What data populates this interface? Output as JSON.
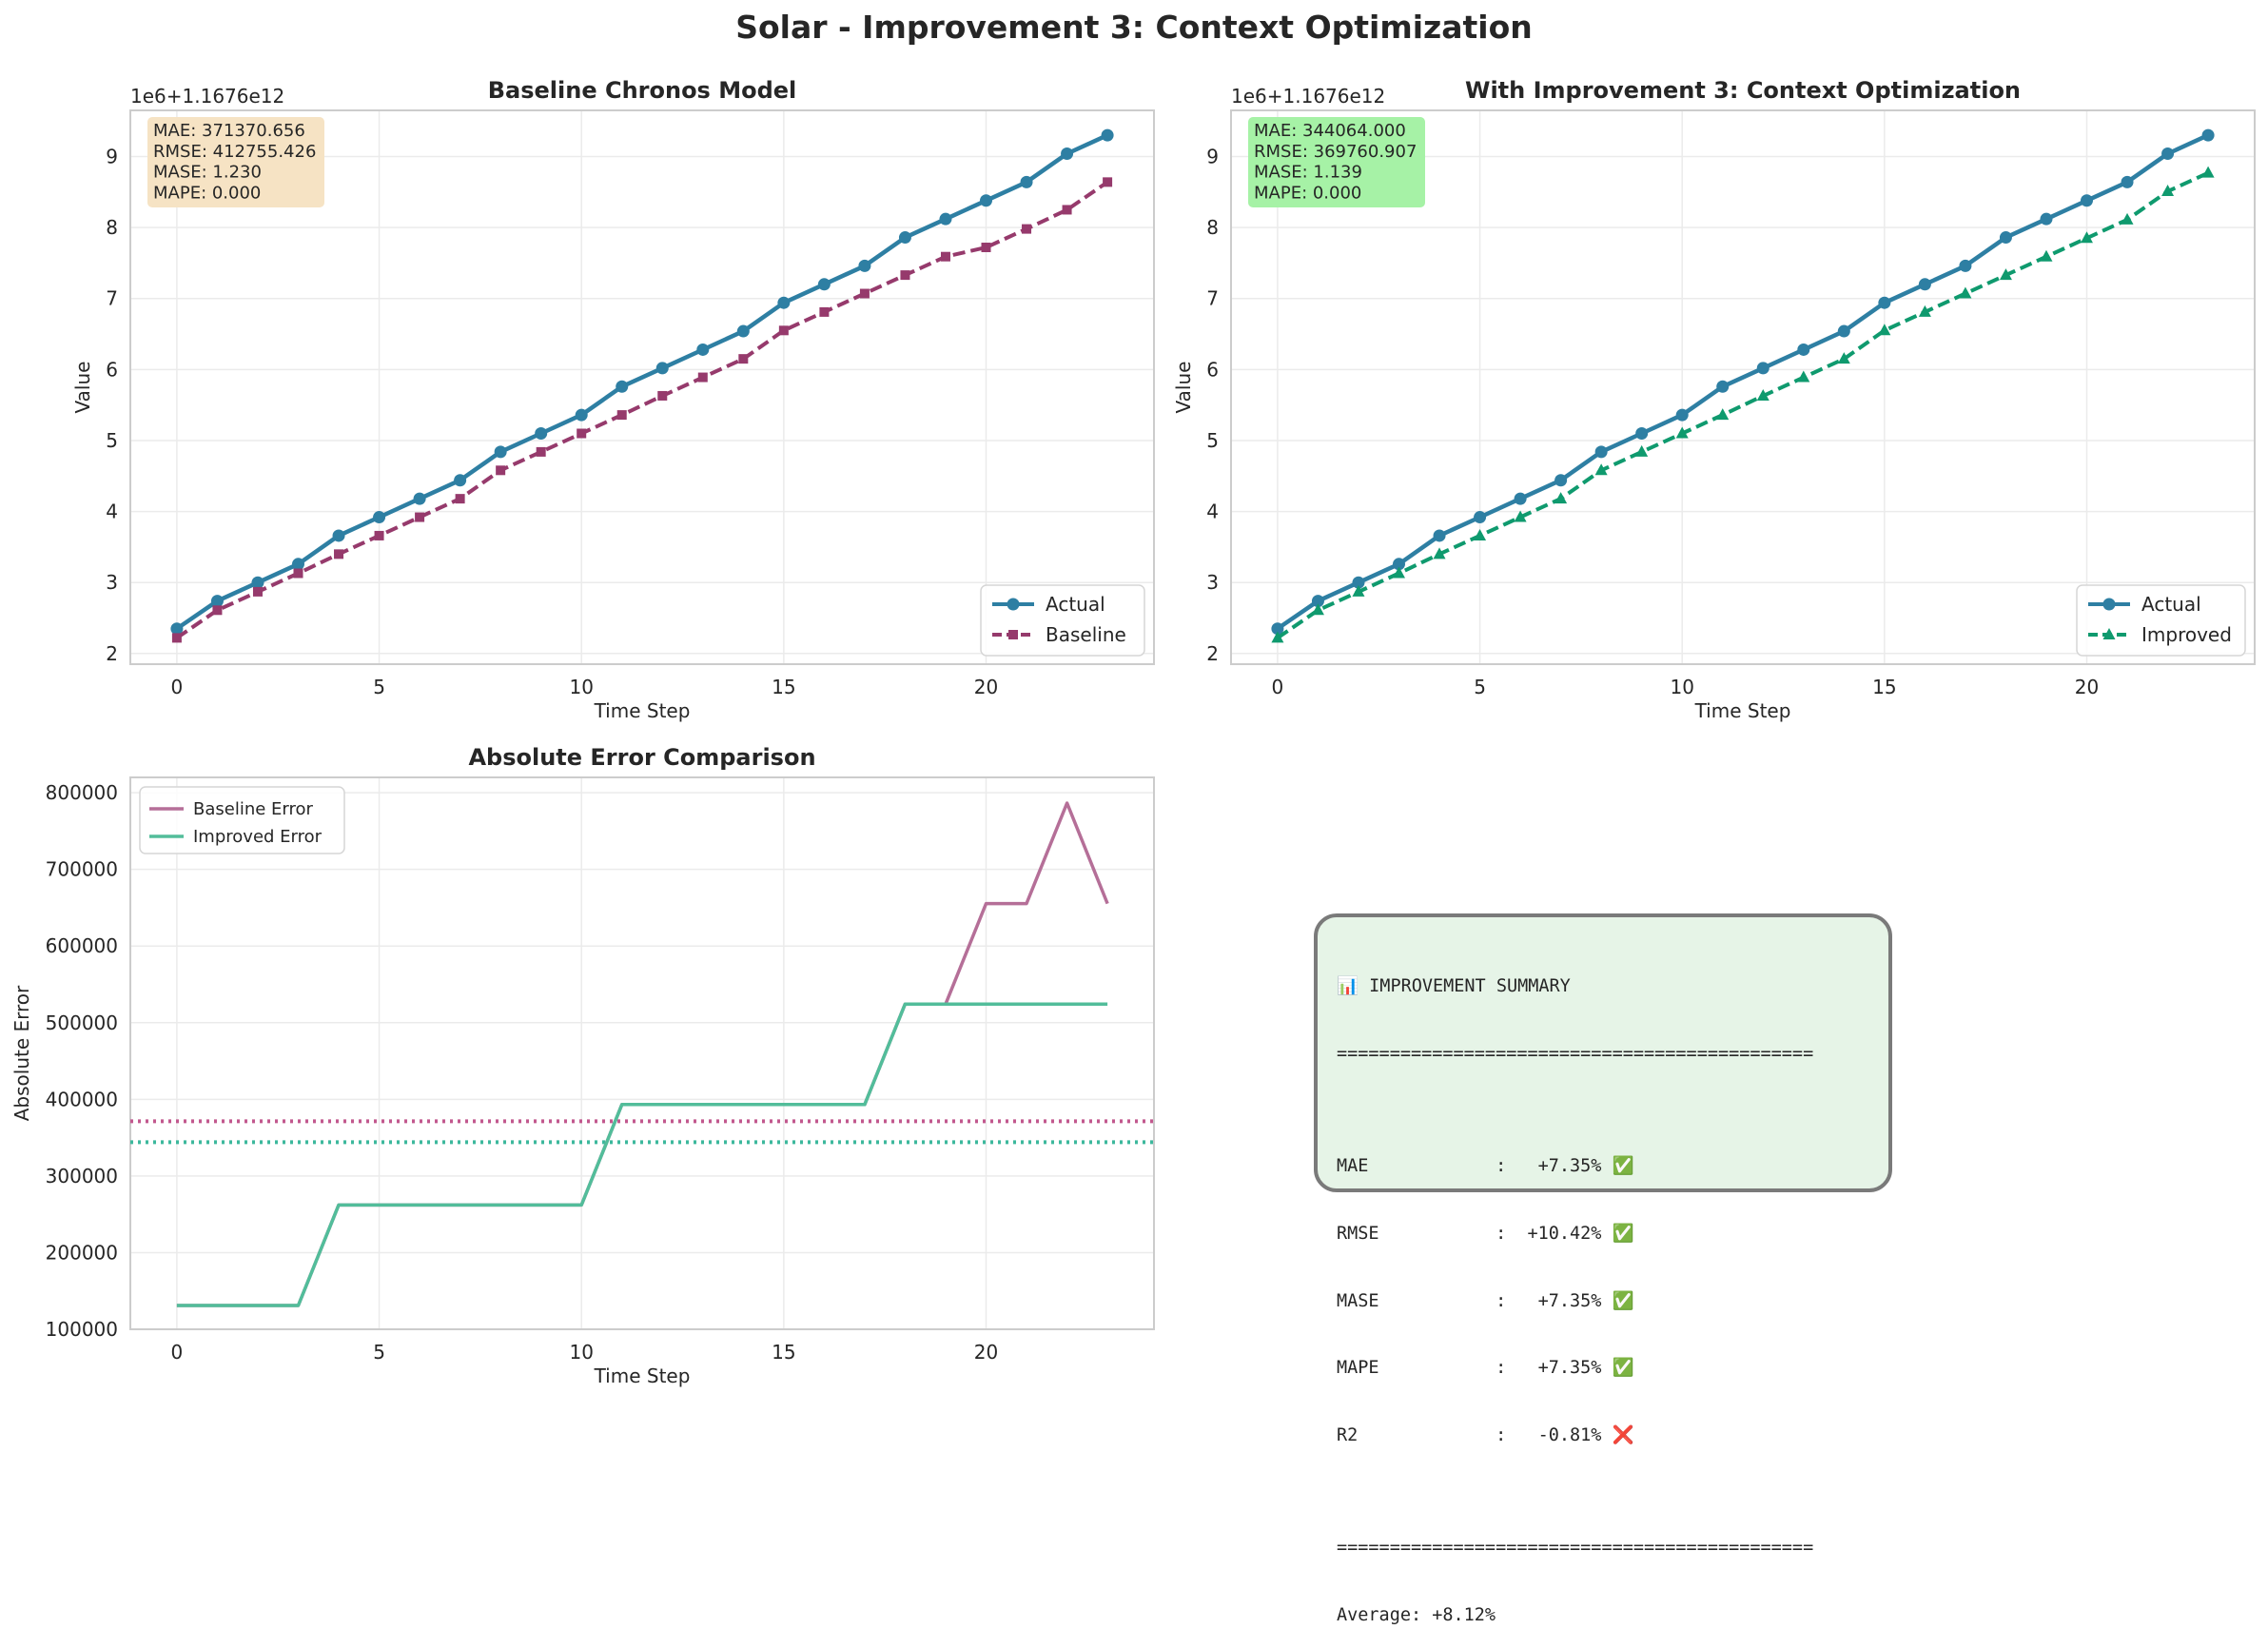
{
  "figure": {
    "title": "Solar - Improvement 3: Context Optimization"
  },
  "colors": {
    "actual": "#2e7fa3",
    "baseline": "#963a6c",
    "improved": "#0f9a6e",
    "baseline_error": "#b56f98",
    "improved_error": "#52bd9a",
    "baseline_mean": "#c2588e",
    "improved_mean": "#3cb89c",
    "metrics_box_baseline": "#f6e3c4",
    "metrics_box_improved": "#a6f2a6",
    "summary_box": "#e6f4e7"
  },
  "chart_data": [
    {
      "type": "line",
      "title": "Baseline Chronos Model",
      "xlabel": "Time Step",
      "ylabel": "Value",
      "offset_label": "1e6+1.1676e12",
      "xlim": [
        -1.15,
        24.15
      ],
      "ylim": [
        1.85,
        9.65
      ],
      "xticks": [
        0,
        5,
        10,
        15,
        20
      ],
      "yticks": [
        2,
        3,
        4,
        5,
        6,
        7,
        8,
        9
      ],
      "grid": true,
      "legend_position": "lower-right",
      "metrics_box": [
        "MAE: 371370.656",
        "RMSE: 412755.426",
        "MASE: 1.230",
        "MAPE: 0.000"
      ],
      "x": [
        0,
        1,
        2,
        3,
        4,
        5,
        6,
        7,
        8,
        9,
        10,
        11,
        12,
        13,
        14,
        15,
        16,
        17,
        18,
        19,
        20,
        21,
        22,
        23
      ],
      "series": [
        {
          "name": "Actual",
          "marker": "circle",
          "dashed": false,
          "values": [
            2.35,
            2.74,
            3.0,
            3.26,
            3.66,
            3.92,
            4.18,
            4.44,
            4.84,
            5.1,
            5.36,
            5.76,
            6.02,
            6.28,
            6.54,
            6.94,
            7.2,
            7.46,
            7.86,
            8.12,
            8.38,
            8.64,
            9.04,
            9.3
          ]
        },
        {
          "name": "Baseline",
          "marker": "square",
          "dashed": true,
          "values": [
            2.22,
            2.61,
            2.87,
            3.13,
            3.4,
            3.66,
            3.92,
            4.18,
            4.58,
            4.84,
            5.1,
            5.36,
            5.63,
            5.89,
            6.15,
            6.55,
            6.81,
            7.07,
            7.33,
            7.59,
            7.72,
            7.98,
            8.25,
            8.64
          ]
        }
      ]
    },
    {
      "type": "line",
      "title": "With Improvement 3: Context Optimization",
      "xlabel": "Time Step",
      "ylabel": "Value",
      "offset_label": "1e6+1.1676e12",
      "xlim": [
        -1.15,
        24.15
      ],
      "ylim": [
        1.85,
        9.65
      ],
      "xticks": [
        0,
        5,
        10,
        15,
        20
      ],
      "yticks": [
        2,
        3,
        4,
        5,
        6,
        7,
        8,
        9
      ],
      "grid": true,
      "legend_position": "lower-right",
      "metrics_box": [
        "MAE: 344064.000",
        "RMSE: 369760.907",
        "MASE: 1.139",
        "MAPE: 0.000"
      ],
      "x": [
        0,
        1,
        2,
        3,
        4,
        5,
        6,
        7,
        8,
        9,
        10,
        11,
        12,
        13,
        14,
        15,
        16,
        17,
        18,
        19,
        20,
        21,
        22,
        23
      ],
      "series": [
        {
          "name": "Actual",
          "marker": "circle",
          "dashed": false,
          "values": [
            2.35,
            2.74,
            3.0,
            3.26,
            3.66,
            3.92,
            4.18,
            4.44,
            4.84,
            5.1,
            5.36,
            5.76,
            6.02,
            6.28,
            6.54,
            6.94,
            7.2,
            7.46,
            7.86,
            8.12,
            8.38,
            8.64,
            9.04,
            9.3
          ]
        },
        {
          "name": "Improved",
          "marker": "triangle",
          "dashed": true,
          "values": [
            2.22,
            2.61,
            2.87,
            3.13,
            3.4,
            3.66,
            3.92,
            4.18,
            4.58,
            4.84,
            5.1,
            5.36,
            5.63,
            5.89,
            6.15,
            6.55,
            6.81,
            7.07,
            7.33,
            7.59,
            7.85,
            8.11,
            8.51,
            8.77
          ]
        }
      ]
    },
    {
      "type": "line",
      "title": "Absolute Error Comparison",
      "xlabel": "Time Step",
      "ylabel": "Absolute Error",
      "xlim": [
        -1.15,
        24.15
      ],
      "ylim": [
        100000,
        820000
      ],
      "xticks": [
        0,
        5,
        10,
        15,
        20
      ],
      "yticks": [
        100000,
        200000,
        300000,
        400000,
        500000,
        600000,
        700000,
        800000
      ],
      "grid": true,
      "legend_position": "upper-left",
      "x": [
        0,
        1,
        2,
        3,
        4,
        5,
        6,
        7,
        8,
        9,
        10,
        11,
        12,
        13,
        14,
        15,
        16,
        17,
        18,
        19,
        20,
        21,
        22,
        23
      ],
      "series": [
        {
          "name": "Baseline Error",
          "values": [
            131072,
            131072,
            131072,
            131072,
            262144,
            262144,
            262144,
            262144,
            262144,
            262144,
            262144,
            393216,
            393216,
            393216,
            393216,
            393216,
            393216,
            393216,
            524288,
            524288,
            655360,
            655360,
            786432,
            655360
          ]
        },
        {
          "name": "Improved Error",
          "values": [
            131072,
            131072,
            131072,
            131072,
            262144,
            262144,
            262144,
            262144,
            262144,
            262144,
            262144,
            393216,
            393216,
            393216,
            393216,
            393216,
            393216,
            393216,
            524288,
            524288,
            524288,
            524288,
            524288,
            524288
          ]
        }
      ],
      "mean_lines": [
        371370.656,
        344064.0
      ]
    }
  ],
  "summary": {
    "lines": [
      "📊 IMPROVEMENT SUMMARY",
      "=============================================",
      "",
      "MAE            :   +7.35% ✅",
      "RMSE           :  +10.42% ✅",
      "MASE           :   +7.35% ✅",
      "MAPE           :   +7.35% ✅",
      "R2             :   -0.81% ❌",
      "",
      "=============================================",
      "Average: +8.12%"
    ]
  }
}
